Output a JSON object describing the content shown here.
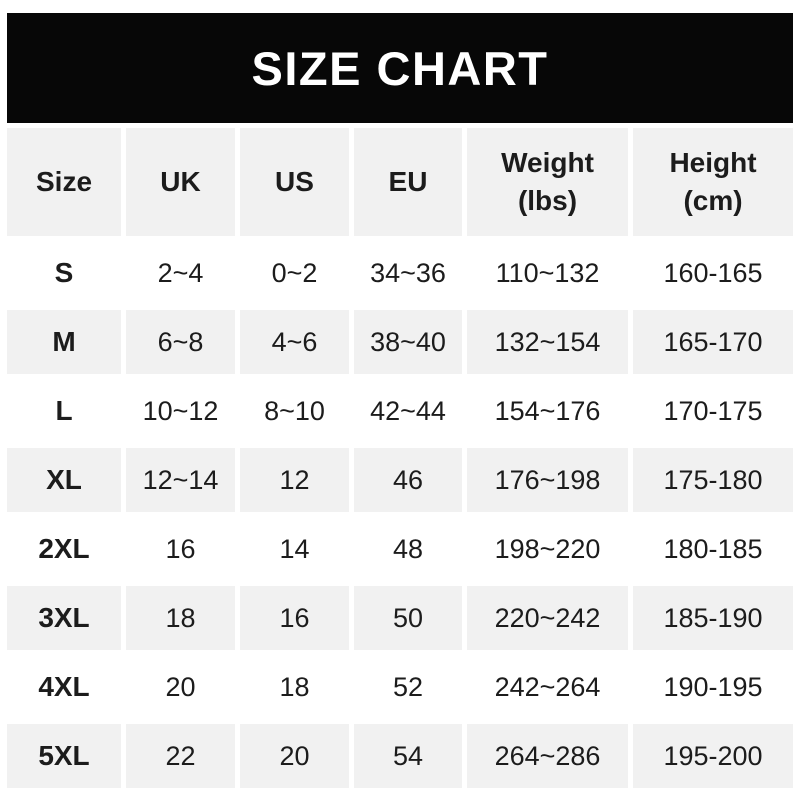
{
  "title": "SIZE CHART",
  "colors": {
    "banner_bg": "#070707",
    "title_text": "#ffffff",
    "cell_gray": "#f1f1f1",
    "cell_white": "#ffffff",
    "text": "#1c1c1c"
  },
  "chart_data": {
    "type": "table",
    "title": "SIZE CHART",
    "columns": [
      {
        "label": "Size",
        "line1": "Size",
        "line2": ""
      },
      {
        "label": "UK",
        "line1": "UK",
        "line2": ""
      },
      {
        "label": "US",
        "line1": "US",
        "line2": ""
      },
      {
        "label": "EU",
        "line1": "EU",
        "line2": ""
      },
      {
        "label": "Weight (lbs)",
        "line1": "Weight",
        "line2": "(lbs)"
      },
      {
        "label": "Height (cm)",
        "line1": "Height",
        "line2": "(cm)"
      }
    ],
    "rows": [
      [
        "S",
        "2~4",
        "0~2",
        "34~36",
        "110~132",
        "160-165"
      ],
      [
        "M",
        "6~8",
        "4~6",
        "38~40",
        "132~154",
        "165-170"
      ],
      [
        "L",
        "10~12",
        "8~10",
        "42~44",
        "154~176",
        "170-175"
      ],
      [
        "XL",
        "12~14",
        "12",
        "46",
        "176~198",
        "175-180"
      ],
      [
        "2XL",
        "16",
        "14",
        "48",
        "198~220",
        "180-185"
      ],
      [
        "3XL",
        "18",
        "16",
        "50",
        "220~242",
        "185-190"
      ],
      [
        "4XL",
        "20",
        "18",
        "52",
        "242~264",
        "190-195"
      ],
      [
        "5XL",
        "22",
        "20",
        "54",
        "264~286",
        "195-200"
      ]
    ]
  }
}
